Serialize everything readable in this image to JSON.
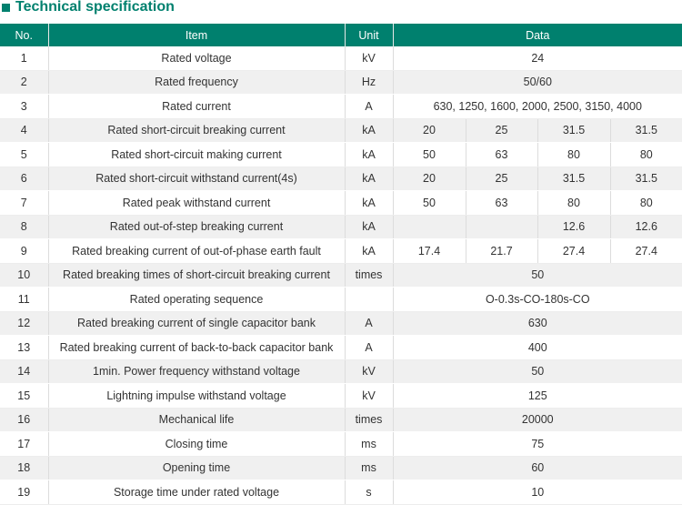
{
  "title": "Technical specification",
  "colors": {
    "accent": "#00806e",
    "row_alt": "#f0f0f0"
  },
  "icons": {
    "title_marker": "square-bullet-icon"
  },
  "header": {
    "no": "No.",
    "item": "Item",
    "unit": "Unit",
    "data": "Data"
  },
  "rows": [
    {
      "no": "1",
      "item": "Rated voltage",
      "unit": "kV",
      "data": [
        "24"
      ]
    },
    {
      "no": "2",
      "item": "Rated frequency",
      "unit": "Hz",
      "data": [
        "50/60"
      ]
    },
    {
      "no": "3",
      "item": "Rated current",
      "unit": "A",
      "data": [
        "630, 1250, 1600, 2000, 2500, 3150, 4000"
      ]
    },
    {
      "no": "4",
      "item": "Rated short-circuit breaking current",
      "unit": "kA",
      "data": [
        "20",
        "25",
        "31.5",
        "31.5"
      ]
    },
    {
      "no": "5",
      "item": "Rated short-circuit making current",
      "unit": "kA",
      "data": [
        "50",
        "63",
        "80",
        "80"
      ]
    },
    {
      "no": "6",
      "item": "Rated short-circuit withstand current(4s)",
      "unit": "kA",
      "data": [
        "20",
        "25",
        "31.5",
        "31.5"
      ]
    },
    {
      "no": "7",
      "item": "Rated peak withstand current",
      "unit": "kA",
      "data": [
        "50",
        "63",
        "80",
        "80"
      ]
    },
    {
      "no": "8",
      "item": "Rated out-of-step breaking current",
      "unit": "kA",
      "data": [
        "",
        "",
        "12.6",
        "12.6"
      ]
    },
    {
      "no": "9",
      "item": "Rated breaking current of out-of-phase earth fault",
      "unit": "kA",
      "data": [
        "17.4",
        "21.7",
        "27.4",
        "27.4"
      ]
    },
    {
      "no": "10",
      "item": "Rated breaking times of short-circuit breaking current",
      "unit": "times",
      "data": [
        "50"
      ]
    },
    {
      "no": "11",
      "item": "Rated operating sequence",
      "unit": "",
      "data": [
        "O-0.3s-CO-180s-CO"
      ]
    },
    {
      "no": "12",
      "item": "Rated breaking current of single capacitor bank",
      "unit": "A",
      "data": [
        "630"
      ]
    },
    {
      "no": "13",
      "item": "Rated breaking current of back-to-back capacitor bank",
      "unit": "A",
      "data": [
        "400"
      ]
    },
    {
      "no": "14",
      "item": "1min. Power frequency withstand voltage",
      "unit": "kV",
      "data": [
        "50"
      ]
    },
    {
      "no": "15",
      "item": "Lightning impulse withstand voltage",
      "unit": "kV",
      "data": [
        "125"
      ]
    },
    {
      "no": "16",
      "item": "Mechanical life",
      "unit": "times",
      "data": [
        "20000"
      ]
    },
    {
      "no": "17",
      "item": "Closing time",
      "unit": "ms",
      "data": [
        "75"
      ]
    },
    {
      "no": "18",
      "item": "Opening time",
      "unit": "ms",
      "data": [
        "60"
      ]
    },
    {
      "no": "19",
      "item": "Storage time under rated voltage",
      "unit": "s",
      "data": [
        "10"
      ]
    }
  ]
}
